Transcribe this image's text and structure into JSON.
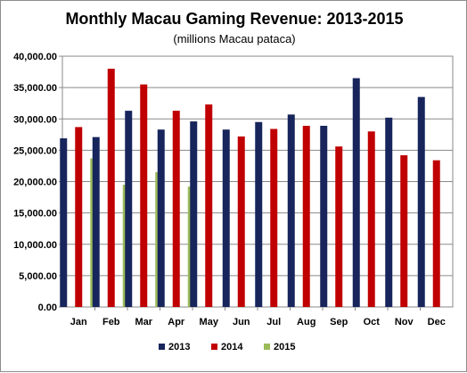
{
  "chart_data": {
    "type": "bar",
    "title": "Monthly Macau Gaming Revenue: 2013-2015",
    "subtitle": "(millions Macau pataca)",
    "xlabel": "",
    "ylabel": "",
    "ylim": [
      0,
      40000
    ],
    "y_ticks": [
      "0.00",
      "5,000.00",
      "10,000.00",
      "15,000.00",
      "20,000.00",
      "25,000.00",
      "30,000.00",
      "35,000.00",
      "40,000.00"
    ],
    "grid": true,
    "legend_position": "bottom",
    "categories": [
      "Jan",
      "Feb",
      "Mar",
      "Apr",
      "May",
      "Jun",
      "Jul",
      "Aug",
      "Sep",
      "Oct",
      "Nov",
      "Dec"
    ],
    "series": [
      {
        "name": "2013",
        "color": "#17255c",
        "values": [
          26900,
          27100,
          31300,
          28300,
          29600,
          28300,
          29500,
          30700,
          28900,
          36500,
          30200,
          33500
        ]
      },
      {
        "name": "2014",
        "color": "#c00000",
        "values": [
          28700,
          38000,
          35500,
          31300,
          32300,
          27200,
          28400,
          28900,
          25600,
          28000,
          24200,
          23400
        ]
      },
      {
        "name": "2015",
        "color": "#9bbb59",
        "values": [
          23700,
          19500,
          21500,
          19200,
          null,
          null,
          null,
          null,
          null,
          null,
          null,
          null
        ]
      }
    ]
  }
}
